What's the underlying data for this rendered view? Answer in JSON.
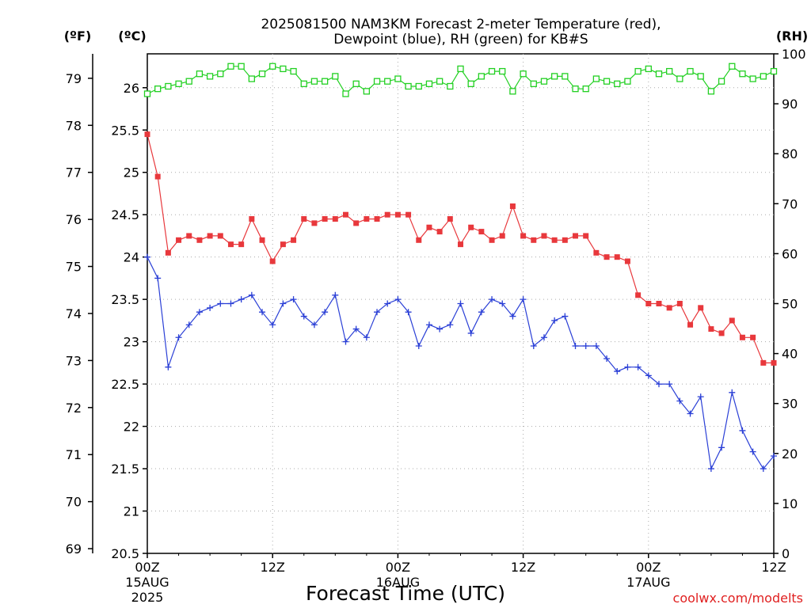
{
  "title": {
    "line1": "2025081500 NAM3KM Forecast 2-meter Temperature (red),",
    "line2": "Dewpoint (blue), RH (green) for KB#S"
  },
  "units": {
    "f": "(ºF)",
    "c": "(ºC)",
    "rh": "(RH)"
  },
  "x_axis": {
    "label": "Forecast Time (UTC)",
    "ticks": [
      {
        "hour": 0,
        "label": "00Z",
        "sub1": "15AUG",
        "sub2": "2025"
      },
      {
        "hour": 12,
        "label": "12Z",
        "sub1": "",
        "sub2": ""
      },
      {
        "hour": 24,
        "label": "00Z",
        "sub1": "16AUG",
        "sub2": ""
      },
      {
        "hour": 36,
        "label": "12Z",
        "sub1": "",
        "sub2": ""
      },
      {
        "hour": 48,
        "label": "00Z",
        "sub1": "17AUG",
        "sub2": ""
      },
      {
        "hour": 60,
        "label": "12Z",
        "sub1": "",
        "sub2": ""
      }
    ]
  },
  "credit": "coolwx.com/modelts",
  "colors": {
    "temperature": "#e8383c",
    "dewpoint": "#2a3fd6",
    "rh": "#22d022"
  },
  "chart_data": {
    "type": "line",
    "xlim": [
      0,
      60
    ],
    "ylim_c": [
      20.5,
      26.4
    ],
    "ylim_f": [
      68.9,
      79.52
    ],
    "ylim_rh": [
      0,
      100
    ],
    "ticks_c": [
      20.5,
      21,
      21.5,
      22,
      22.5,
      23,
      23.5,
      24,
      24.5,
      25,
      25.5,
      26
    ],
    "ticks_f": [
      69,
      70,
      71,
      72,
      73,
      74,
      75,
      76,
      77,
      78,
      79
    ],
    "ticks_rh": [
      0,
      10,
      20,
      30,
      40,
      50,
      60,
      70,
      80,
      90,
      100
    ],
    "x_hours": [
      0,
      1,
      2,
      3,
      4,
      5,
      6,
      7,
      8,
      9,
      10,
      11,
      12,
      13,
      14,
      15,
      16,
      17,
      18,
      19,
      20,
      21,
      22,
      23,
      24,
      25,
      26,
      27,
      28,
      29,
      30,
      31,
      32,
      33,
      34,
      35,
      36,
      37,
      38,
      39,
      40,
      41,
      42,
      43,
      44,
      45,
      46,
      47,
      48,
      49,
      50,
      51,
      52,
      53,
      54,
      55,
      56,
      57,
      58,
      59,
      60
    ],
    "series": [
      {
        "name": "Temperature",
        "unit": "C",
        "marker": "filled-square",
        "values": [
          25.45,
          24.95,
          24.05,
          24.2,
          24.25,
          24.2,
          24.25,
          24.25,
          24.15,
          24.15,
          24.45,
          24.2,
          23.95,
          24.15,
          24.2,
          24.45,
          24.4,
          24.45,
          24.45,
          24.5,
          24.4,
          24.45,
          24.45,
          24.5,
          24.5,
          24.5,
          24.2,
          24.35,
          24.3,
          24.45,
          24.15,
          24.35,
          24.3,
          24.2,
          24.25,
          24.6,
          24.25,
          24.2,
          24.25,
          24.2,
          24.2,
          24.25,
          24.25,
          24.05,
          24.0,
          24.0,
          23.95,
          23.55,
          23.45,
          23.45,
          23.4,
          23.45,
          23.2,
          23.4,
          23.15,
          23.1,
          23.25,
          23.05,
          23.05,
          22.75,
          22.75
        ]
      },
      {
        "name": "Dewpoint",
        "unit": "C",
        "marker": "plus",
        "values": [
          24.0,
          23.75,
          22.7,
          23.05,
          23.2,
          23.35,
          23.4,
          23.45,
          23.45,
          23.5,
          23.55,
          23.35,
          23.2,
          23.45,
          23.5,
          23.3,
          23.2,
          23.35,
          23.55,
          23.0,
          23.15,
          23.05,
          23.35,
          23.45,
          23.5,
          23.35,
          22.95,
          23.2,
          23.15,
          23.2,
          23.45,
          23.1,
          23.35,
          23.5,
          23.45,
          23.3,
          23.5,
          22.95,
          23.05,
          23.25,
          23.3,
          22.95,
          22.95,
          22.95,
          22.8,
          22.65,
          22.7,
          22.7,
          22.6,
          22.5,
          22.5,
          22.3,
          22.15,
          22.35,
          21.5,
          21.75,
          22.4,
          21.95,
          21.7,
          21.5,
          21.65
        ]
      },
      {
        "name": "RH",
        "unit": "%",
        "marker": "open-square",
        "values": [
          92,
          93,
          93.5,
          94,
          94.5,
          96,
          95.5,
          96,
          97.5,
          97.5,
          95,
          96,
          97.5,
          97,
          96.5,
          94,
          94.5,
          94.5,
          95.5,
          92,
          94,
          92.5,
          94.5,
          94.5,
          95,
          93.5,
          93.5,
          94,
          94.5,
          93.5,
          97,
          94,
          95.5,
          96.5,
          96.5,
          92.5,
          96,
          94,
          94.5,
          95.5,
          95.5,
          93,
          93,
          95,
          94.5,
          94,
          94.5,
          96.5,
          97,
          96,
          96.5,
          95,
          96.5,
          95.5,
          92.5,
          94.5,
          97.5,
          96,
          95,
          95.5,
          96.5
        ]
      }
    ]
  }
}
